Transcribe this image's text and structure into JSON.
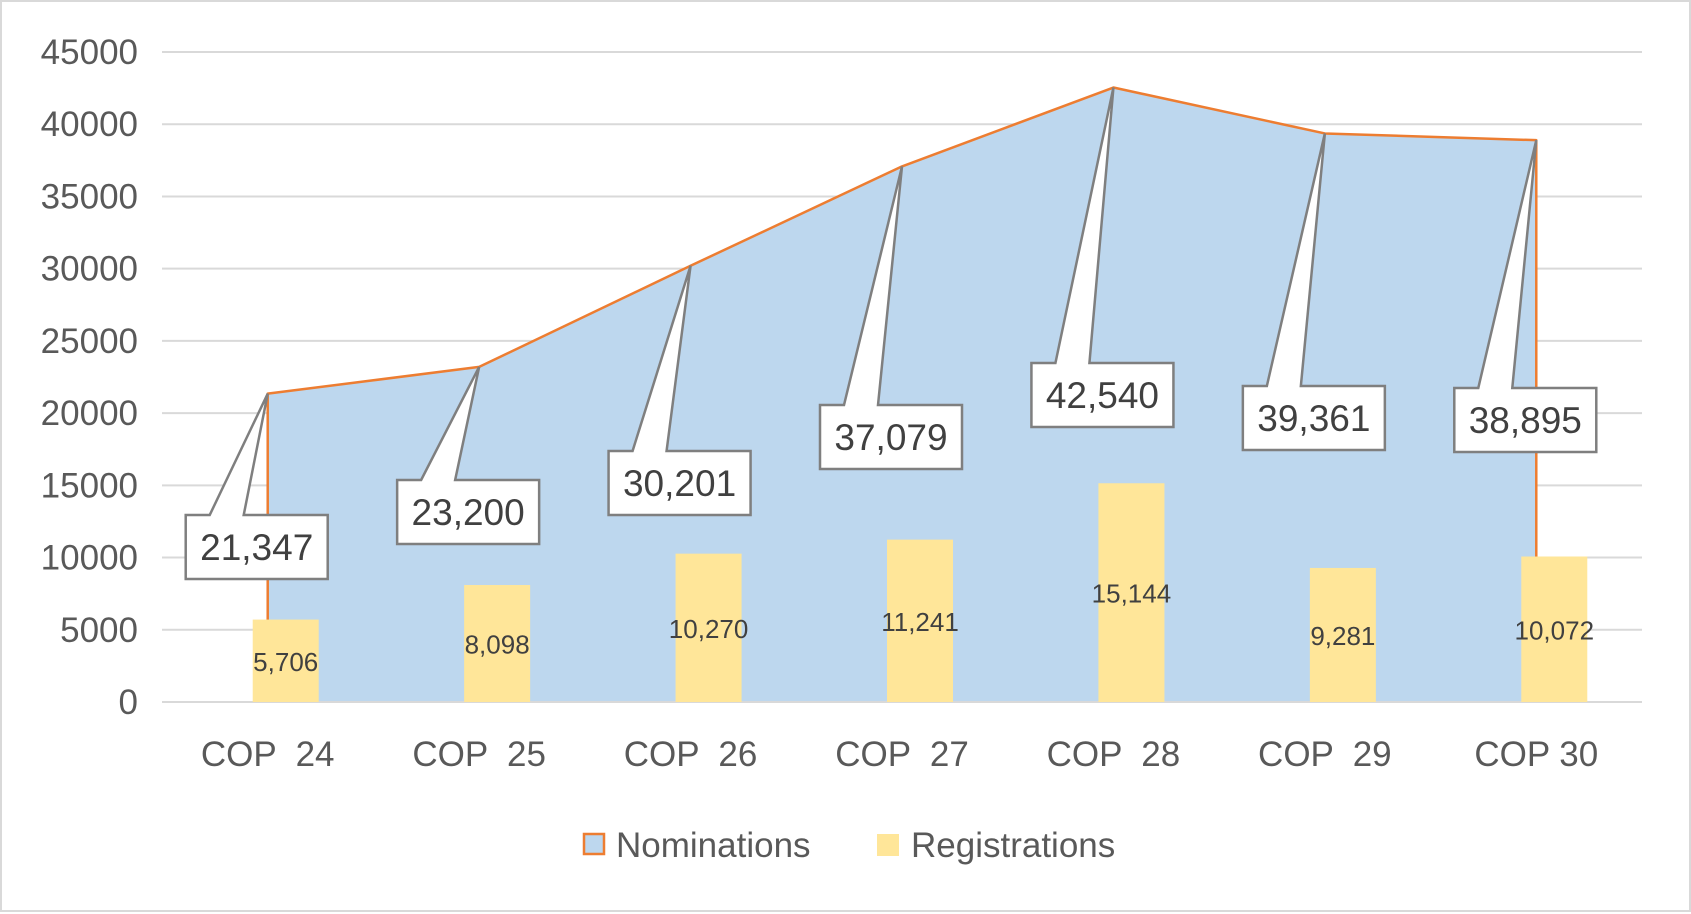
{
  "chart_data": {
    "type": "area",
    "categories": [
      "COP  24",
      "COP  25",
      "COP  26",
      "COP  27",
      "COP  28",
      "COP  29",
      "COP 30"
    ],
    "series": [
      {
        "name": "Nominations",
        "kind": "area",
        "values": [
          21347,
          23200,
          30201,
          37079,
          42540,
          39361,
          38895
        ],
        "data_labels": [
          "21,347",
          "23,200",
          "30,201",
          "37,079",
          "42,540",
          "39,361",
          "38,895"
        ],
        "fill_color": "#bdd7ee",
        "line_color": "#ed7d31"
      },
      {
        "name": "Registrations",
        "kind": "bar",
        "values": [
          5706,
          8098,
          10270,
          11241,
          15144,
          9281,
          10072
        ],
        "data_labels": [
          "5,706",
          "8,098",
          "10,270",
          "11,241",
          "15,144",
          "9,281",
          "10,072"
        ],
        "color": "#ffe699"
      }
    ],
    "y_ticks": [
      "0",
      "5000",
      "10000",
      "15000",
      "20000",
      "25000",
      "30000",
      "35000",
      "40000",
      "45000"
    ],
    "ylim": [
      0,
      45000
    ],
    "grid": true,
    "legend_position": "bottom"
  }
}
